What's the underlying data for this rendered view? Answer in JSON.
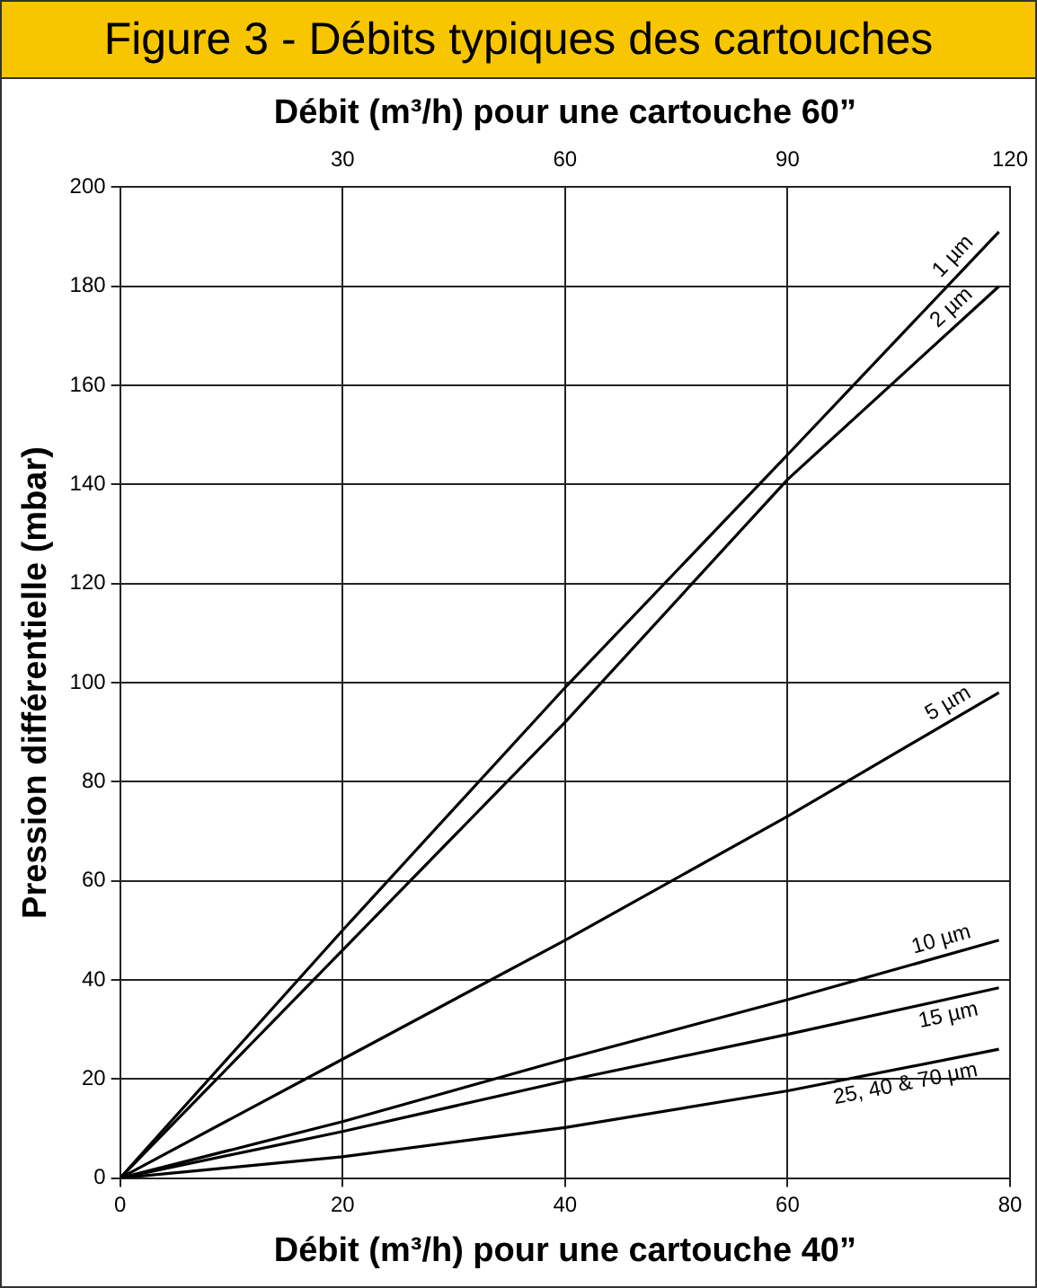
{
  "chart_data": {
    "type": "line",
    "title": "Figure 3 - Débits typiques des cartouches",
    "xlabel": "Débit (m³/h) pour une cartouche 40”",
    "x2label": "Débit (m³/h) pour une cartouche 60”",
    "ylabel": "Pression différentielle (mbar)",
    "x": [
      0,
      20,
      40,
      60,
      79
    ],
    "series": [
      {
        "name": "1 µm",
        "color": "#000000",
        "values": [
          0,
          50,
          99,
          146,
          191
        ]
      },
      {
        "name": "2 µm",
        "color": "#000000",
        "values": [
          0,
          46,
          92,
          141,
          180
        ]
      },
      {
        "name": "5 µm",
        "color": "#000000",
        "values": [
          0,
          24,
          48,
          73,
          98
        ]
      },
      {
        "name": "10 µm",
        "color": "#000000",
        "values": [
          0,
          11.4,
          24,
          36,
          48
        ]
      },
      {
        "name": "15 µm",
        "color": "#000000",
        "values": [
          0,
          9.4,
          19.6,
          29,
          38.4
        ]
      },
      {
        "name": "25, 40 & 70 µm",
        "color": "#000000",
        "values": [
          0,
          4.3,
          10.2,
          17.6,
          26
        ]
      }
    ],
    "xlim": [
      0,
      80
    ],
    "xticks": [
      0,
      20,
      40,
      60,
      80
    ],
    "x2lim": [
      0,
      120
    ],
    "x2ticks": [
      30,
      60,
      90,
      120
    ],
    "ylim": [
      0,
      200
    ],
    "yticks": [
      0,
      20,
      40,
      60,
      80,
      100,
      120,
      140,
      160,
      180,
      200
    ],
    "grid": true,
    "legend": false,
    "marker": "none",
    "line_style": "solid"
  }
}
